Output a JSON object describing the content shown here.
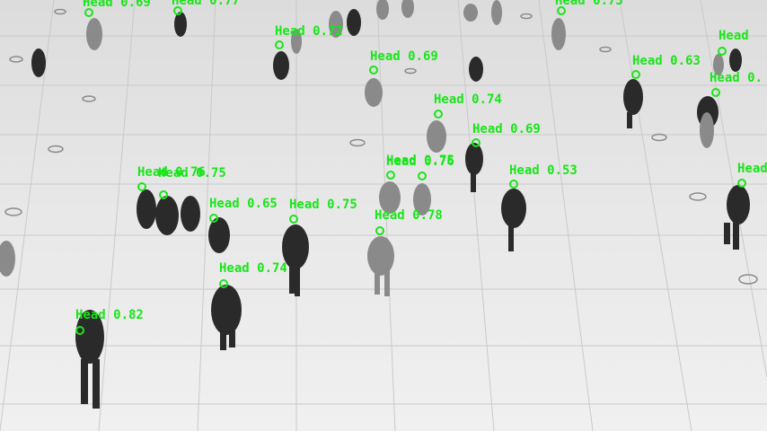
{
  "detection_color": "#19e619",
  "detections": [
    {
      "label": "Head 0.69"
    },
    {
      "label": "Head 0.77"
    },
    {
      "label": "Head 0.73"
    },
    {
      "label": "Head 0.72"
    },
    {
      "label": "Head 0.69"
    },
    {
      "label": "Head 0.63"
    },
    {
      "label": "Head"
    },
    {
      "label": "Head 0."
    },
    {
      "label": "Head 0.74"
    },
    {
      "label": "Head 0.69"
    },
    {
      "label": "Head 0.76"
    },
    {
      "label": "Head 0.75"
    },
    {
      "label": "Head 0.65"
    },
    {
      "label": "Head 0.75"
    },
    {
      "label": "Head 0.78"
    },
    {
      "label": "Head 0.53"
    },
    {
      "label": "Head"
    },
    {
      "label": "Head 0.74"
    },
    {
      "label": "Head 0.82"
    },
    {
      "label": "Head 0.76"
    },
    {
      "label": "Head 0.75"
    }
  ]
}
